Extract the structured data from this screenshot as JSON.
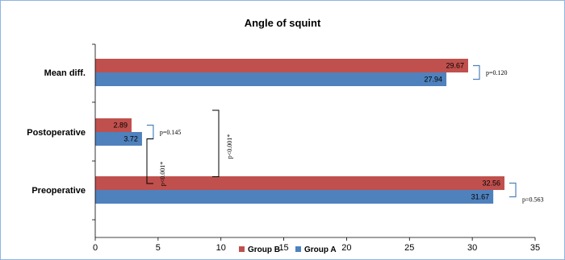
{
  "chart_data": {
    "type": "bar",
    "orientation": "horizontal",
    "title": "Angle of squint",
    "categories": [
      "Mean diff.",
      "Postoperative",
      "Preoperative"
    ],
    "series": [
      {
        "name": "Group B",
        "values": [
          29.67,
          2.89,
          32.56
        ],
        "labels": [
          "29.67",
          "2.89",
          "32.56"
        ],
        "color": "#c0504d"
      },
      {
        "name": "Group A",
        "values": [
          27.94,
          3.72,
          31.67
        ],
        "labels": [
          "27.94",
          "3.72",
          "31.67"
        ],
        "color": "#4f81bd"
      }
    ],
    "xlim": [
      0,
      35
    ],
    "xticks": [
      "0",
      "5",
      "10",
      "15",
      "20",
      "25",
      "30",
      "35"
    ],
    "grid": false,
    "legend": "bottom",
    "annotations": [
      {
        "text": "p=0.120",
        "category": "Mean diff."
      },
      {
        "text": "p=0.145",
        "category": "Postoperative"
      },
      {
        "text": "p=0.563",
        "category": "Preoperative"
      },
      {
        "text": "p<0.001*",
        "between": [
          "Postoperative",
          "Preoperative"
        ],
        "series": "Group A"
      },
      {
        "text": "p<0.001*",
        "between": [
          "Postoperative",
          "Preoperative"
        ],
        "series": "Group B"
      }
    ]
  }
}
